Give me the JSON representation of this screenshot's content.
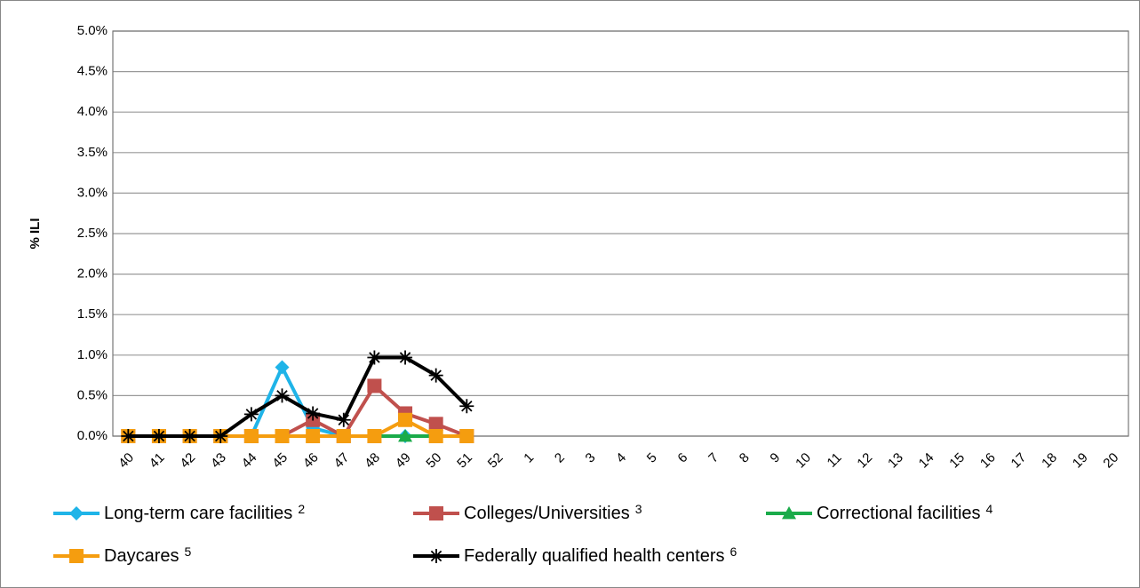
{
  "chart_data": {
    "type": "line",
    "y_label": "% ILI",
    "categories": [
      "40",
      "41",
      "42",
      "43",
      "44",
      "45",
      "46",
      "47",
      "48",
      "49",
      "50",
      "51",
      "52",
      "1",
      "2",
      "3",
      "4",
      "5",
      "6",
      "7",
      "8",
      "9",
      "10",
      "11",
      "12",
      "13",
      "14",
      "15",
      "16",
      "17",
      "18",
      "19",
      "20"
    ],
    "ylim": [
      0,
      5
    ],
    "yticks": [
      {
        "value": 0,
        "label": "0.0%"
      },
      {
        "value": 0.5,
        "label": "0.5%"
      },
      {
        "value": 1,
        "label": "1.0%"
      },
      {
        "value": 1.5,
        "label": "1.5%"
      },
      {
        "value": 2,
        "label": "2.0%"
      },
      {
        "value": 2.5,
        "label": "2.5%"
      },
      {
        "value": 3,
        "label": "3.0%"
      },
      {
        "value": 3.5,
        "label": "3.5%"
      },
      {
        "value": 4,
        "label": "4.0%"
      },
      {
        "value": 4.5,
        "label": "4.5%"
      },
      {
        "value": 5,
        "label": "5.0%"
      }
    ],
    "grid": true,
    "legend": "bottom",
    "series": [
      {
        "name": "Long-term care facilities",
        "footnote": "2",
        "color": "#1fb4e8",
        "marker": "diamond",
        "values": [
          0,
          0,
          0,
          0,
          0,
          0.85,
          0.1,
          0,
          0,
          0,
          0,
          0,
          null,
          null,
          null,
          null,
          null,
          null,
          null,
          null,
          null,
          null,
          null,
          null,
          null,
          null,
          null,
          null,
          null,
          null,
          null,
          null,
          null
        ]
      },
      {
        "name": "Colleges/Universities",
        "footnote": "3",
        "color": "#c0504d",
        "marker": "square",
        "values": [
          0,
          0,
          0,
          0,
          0,
          0,
          0.2,
          0,
          0.62,
          0.28,
          0.15,
          0,
          null,
          null,
          null,
          null,
          null,
          null,
          null,
          null,
          null,
          null,
          null,
          null,
          null,
          null,
          null,
          null,
          null,
          null,
          null,
          null,
          null
        ]
      },
      {
        "name": "Correctional facilities",
        "footnote": "4",
        "color": "#1aab4a",
        "marker": "triangle",
        "values": [
          0,
          0,
          0,
          0,
          0,
          0,
          0,
          0,
          0,
          0,
          0,
          0,
          null,
          null,
          null,
          null,
          null,
          null,
          null,
          null,
          null,
          null,
          null,
          null,
          null,
          null,
          null,
          null,
          null,
          null,
          null,
          null,
          null
        ]
      },
      {
        "name": "Daycares",
        "footnote": "5",
        "color": "#f59d0f",
        "marker": "square",
        "values": [
          0,
          0,
          0,
          0,
          0,
          0,
          0,
          0,
          0,
          0.2,
          0,
          0,
          null,
          null,
          null,
          null,
          null,
          null,
          null,
          null,
          null,
          null,
          null,
          null,
          null,
          null,
          null,
          null,
          null,
          null,
          null,
          null,
          null
        ]
      },
      {
        "name": "Federally qualified health centers",
        "footnote": "6",
        "color": "#000000",
        "marker": "star",
        "values": [
          0,
          0,
          0,
          0,
          0.27,
          0.5,
          0.28,
          0.2,
          0.97,
          0.97,
          0.75,
          0.37,
          null,
          null,
          null,
          null,
          null,
          null,
          null,
          null,
          null,
          null,
          null,
          null,
          null,
          null,
          null,
          null,
          null,
          null,
          null,
          null,
          null
        ]
      }
    ]
  }
}
